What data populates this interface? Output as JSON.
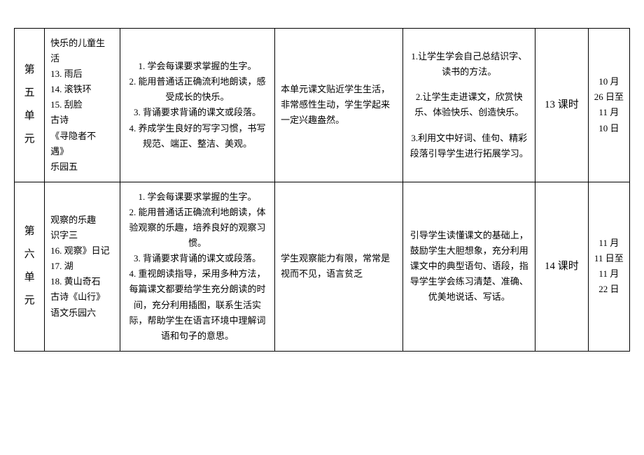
{
  "rows": [
    {
      "unit_label": "第五单元",
      "content": "快乐的儿童生活\n13. 雨后\n14. 滚铁环\n15. 刮脸\n古诗\n《寻隐者不遇》\n乐园五",
      "goals": "1. 学会每课要求掌握的生字。\n2. 能用普通话正确流利地朗读，感受成长的快乐。\n3. 背诵要求背诵的课文或段落。\n4. 养成学生良好的写字习惯，书写规范、端正、整洁、美观。",
      "analysis": "本单元课文贴近学生生活，非常感性生动，学生学起来一定兴趣盎然。",
      "methods_lines": [
        "1.让学生学会自己总结识字、读书的方法。",
        "2.让学生走进课文，欣赏快乐、体验快乐、创造快乐。",
        "3.利用文中好词、佳句、精彩",
        "段落引导学生进行拓展学习。"
      ],
      "methods_spaced_after": [
        1,
        2
      ],
      "hours": "13 课时",
      "date": "10 月 26 日至 11 月 10 日"
    },
    {
      "unit_label": "第六单元",
      "content": "观察的乐趣\n识字三\n16. 观察》日记\n17. 湖\n18. 黄山奇石\n古诗《山行》\n语文乐园六",
      "goals": "1. 学会每课要求掌握的生字。\n2. 能用普通话正确流利地朗读，体验观察的乐趣，培养良好的观察习惯。\n3. 背诵要求背诵的课文或段落。\n4. 重视朗读指导，采用多种方法，每篇课文都要给学生充分朗读的时间，充分利用插图，联系生活实际，帮助学生在语言环境中理解词语和句子的意思。",
      "analysis": "学生观察能力有限，常常是视而不见，语言贫乏",
      "methods_lines": [
        "引导学生读懂课文的基础上，鼓励学生大胆想象，充分利用课文中的典型语句、语段，指导学生学会练习清楚、准确、优美地说话、写话。"
      ],
      "methods_spaced_after": [],
      "hours": "14 课时",
      "date": "11 月 11 日至 11 月 22 日"
    }
  ]
}
